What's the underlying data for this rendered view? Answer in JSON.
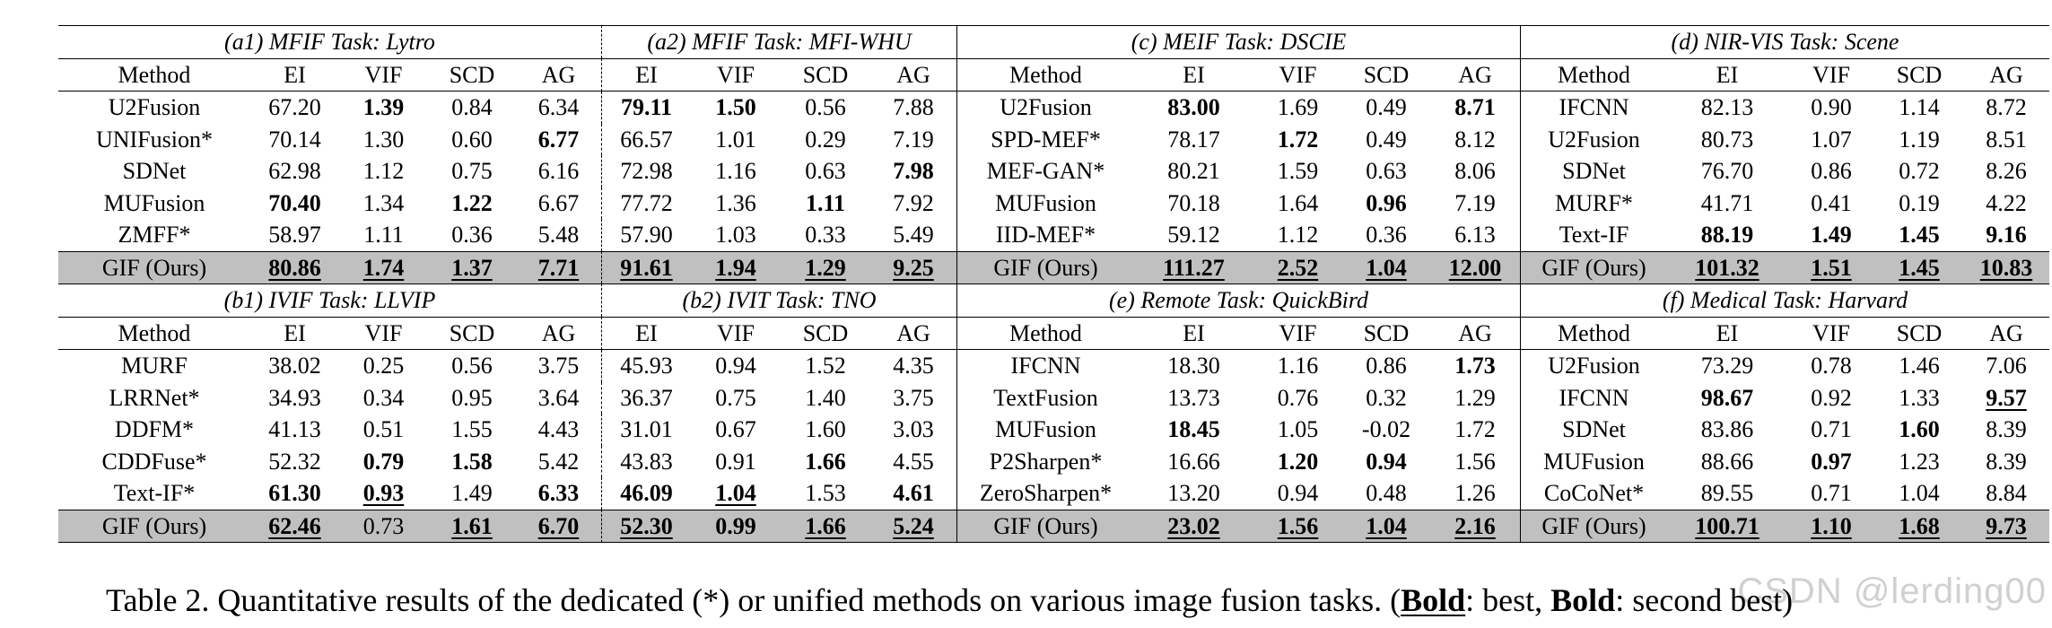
{
  "blocks": [
    {
      "titles": [
        "(a1) MFIF Task: Lytro",
        "(a2) MFIF Task: MFI-WHU",
        "(c) MEIF Task: DSCIE",
        "(d) NIR-VIS Task: Scene"
      ],
      "rows": [
        [
          "Method",
          "EI",
          "VIF",
          "SCD",
          "AG",
          "EI",
          "VIF",
          "SCD",
          "AG",
          "Method",
          "EI",
          "VIF",
          "SCD",
          "AG",
          "Method",
          "EI",
          "VIF",
          "SCD",
          "AG"
        ],
        [
          "U2Fusion",
          "67.20",
          "1.39",
          "0.84",
          "6.34",
          "79.11",
          "1.50",
          "0.56",
          "7.88",
          "U2Fusion",
          "83.00",
          "1.69",
          "0.49",
          "8.71",
          "IFCNN",
          "82.13",
          "0.90",
          "1.14",
          "8.72"
        ],
        [
          "UNIFusion*",
          "70.14",
          "1.30",
          "0.60",
          "6.77",
          "66.57",
          "1.01",
          "0.29",
          "7.19",
          "SPD-MEF*",
          "78.17",
          "1.72",
          "0.49",
          "8.12",
          "U2Fusion",
          "80.73",
          "1.07",
          "1.19",
          "8.51"
        ],
        [
          "SDNet",
          "62.98",
          "1.12",
          "0.75",
          "6.16",
          "72.98",
          "1.16",
          "0.63",
          "7.98",
          "MEF-GAN*",
          "80.21",
          "1.59",
          "0.63",
          "8.06",
          "SDNet",
          "76.70",
          "0.86",
          "0.72",
          "8.26"
        ],
        [
          "MUFusion",
          "70.40",
          "1.34",
          "1.22",
          "6.67",
          "77.72",
          "1.36",
          "1.11",
          "7.92",
          "MUFusion",
          "70.18",
          "1.64",
          "0.96",
          "7.19",
          "MURF*",
          "41.71",
          "0.41",
          "0.19",
          "4.22"
        ],
        [
          "ZMFF*",
          "58.97",
          "1.11",
          "0.36",
          "5.48",
          "57.90",
          "1.03",
          "0.33",
          "5.49",
          "IID-MEF*",
          "59.12",
          "1.12",
          "0.36",
          "6.13",
          "Text-IF",
          "88.19",
          "1.49",
          "1.45",
          "9.16"
        ],
        [
          "GIF (Ours)",
          "80.86",
          "1.74",
          "1.37",
          "7.71",
          "91.61",
          "1.94",
          "1.29",
          "9.25",
          "GIF (Ours)",
          "111.27",
          "2.52",
          "1.04",
          "12.00",
          "GIF (Ours)",
          "101.32",
          "1.51",
          "1.45",
          "10.83"
        ]
      ],
      "bold": [
        [
          1,
          2
        ],
        [
          1,
          5
        ],
        [
          1,
          6
        ],
        [
          1,
          10
        ],
        [
          1,
          13
        ],
        [
          2,
          4
        ],
        [
          2,
          11
        ],
        [
          3,
          8
        ],
        [
          4,
          1
        ],
        [
          4,
          3
        ],
        [
          4,
          7
        ],
        [
          4,
          12
        ],
        [
          5,
          15
        ],
        [
          5,
          16
        ],
        [
          5,
          17
        ],
        [
          5,
          18
        ],
        [
          6,
          1
        ],
        [
          6,
          2
        ],
        [
          6,
          3
        ],
        [
          6,
          4
        ],
        [
          6,
          5
        ],
        [
          6,
          6
        ],
        [
          6,
          7
        ],
        [
          6,
          8
        ],
        [
          6,
          10
        ],
        [
          6,
          11
        ],
        [
          6,
          12
        ],
        [
          6,
          13
        ],
        [
          6,
          15
        ],
        [
          6,
          16
        ],
        [
          6,
          17
        ],
        [
          6,
          18
        ]
      ],
      "underline": [
        [
          6,
          1
        ],
        [
          6,
          2
        ],
        [
          6,
          3
        ],
        [
          6,
          4
        ],
        [
          6,
          5
        ],
        [
          6,
          6
        ],
        [
          6,
          7
        ],
        [
          6,
          8
        ],
        [
          6,
          10
        ],
        [
          6,
          11
        ],
        [
          6,
          12
        ],
        [
          6,
          13
        ],
        [
          6,
          15
        ],
        [
          6,
          16
        ],
        [
          6,
          17
        ],
        [
          6,
          18
        ]
      ]
    },
    {
      "titles": [
        "(b1) IVIF Task: LLVIP",
        "(b2) IVIT Task: TNO",
        "(e) Remote Task: QuickBird",
        "(f) Medical Task: Harvard"
      ],
      "rows": [
        [
          "Method",
          "EI",
          "VIF",
          "SCD",
          "AG",
          "EI",
          "VIF",
          "SCD",
          "AG",
          "Method",
          "EI",
          "VIF",
          "SCD",
          "AG",
          "Method",
          "EI",
          "VIF",
          "SCD",
          "AG"
        ],
        [
          "MURF",
          "38.02",
          "0.25",
          "0.56",
          "3.75",
          "45.93",
          "0.94",
          "1.52",
          "4.35",
          "IFCNN",
          "18.30",
          "1.16",
          "0.86",
          "1.73",
          "U2Fusion",
          "73.29",
          "0.78",
          "1.46",
          "7.06"
        ],
        [
          "LRRNet*",
          "34.93",
          "0.34",
          "0.95",
          "3.64",
          "36.37",
          "0.75",
          "1.40",
          "3.75",
          "TextFusion",
          "13.73",
          "0.76",
          "0.32",
          "1.29",
          "IFCNN",
          "98.67",
          "0.92",
          "1.33",
          "9.57"
        ],
        [
          "DDFM*",
          "41.13",
          "0.51",
          "1.55",
          "4.43",
          "31.01",
          "0.67",
          "1.60",
          "3.03",
          "MUFusion",
          "18.45",
          "1.05",
          "-0.02",
          "1.72",
          "SDNet",
          "83.86",
          "0.71",
          "1.60",
          "8.39"
        ],
        [
          "CDDFuse*",
          "52.32",
          "0.79",
          "1.58",
          "5.42",
          "43.83",
          "0.91",
          "1.66",
          "4.55",
          "P2Sharpen*",
          "16.66",
          "1.20",
          "0.94",
          "1.56",
          "MUFusion",
          "88.66",
          "0.97",
          "1.23",
          "8.39"
        ],
        [
          "Text-IF*",
          "61.30",
          "0.93",
          "1.49",
          "6.33",
          "46.09",
          "1.04",
          "1.53",
          "4.61",
          "ZeroSharpen*",
          "13.20",
          "0.94",
          "0.48",
          "1.26",
          "CoCoNet*",
          "89.55",
          "0.71",
          "1.04",
          "8.84"
        ],
        [
          "GIF (Ours)",
          "62.46",
          "0.73",
          "1.61",
          "6.70",
          "52.30",
          "0.99",
          "1.66",
          "5.24",
          "GIF (Ours)",
          "23.02",
          "1.56",
          "1.04",
          "2.16",
          "GIF (Ours)",
          "100.71",
          "1.10",
          "1.68",
          "9.73"
        ]
      ],
      "bold": [
        [
          1,
          13
        ],
        [
          2,
          15
        ],
        [
          2,
          18
        ],
        [
          3,
          10
        ],
        [
          3,
          17
        ],
        [
          4,
          2
        ],
        [
          4,
          3
        ],
        [
          4,
          7
        ],
        [
          4,
          11
        ],
        [
          4,
          12
        ],
        [
          4,
          16
        ],
        [
          5,
          1
        ],
        [
          5,
          2
        ],
        [
          5,
          4
        ],
        [
          5,
          5
        ],
        [
          5,
          6
        ],
        [
          5,
          8
        ],
        [
          6,
          1
        ],
        [
          6,
          3
        ],
        [
          6,
          4
        ],
        [
          6,
          5
        ],
        [
          6,
          6
        ],
        [
          6,
          7
        ],
        [
          6,
          8
        ],
        [
          6,
          10
        ],
        [
          6,
          11
        ],
        [
          6,
          12
        ],
        [
          6,
          13
        ],
        [
          6,
          15
        ],
        [
          6,
          16
        ],
        [
          6,
          17
        ],
        [
          6,
          18
        ]
      ],
      "underline": [
        [
          2,
          18
        ],
        [
          5,
          2
        ],
        [
          5,
          6
        ],
        [
          6,
          1
        ],
        [
          6,
          3
        ],
        [
          6,
          4
        ],
        [
          6,
          5
        ],
        [
          6,
          7
        ],
        [
          6,
          8
        ],
        [
          6,
          10
        ],
        [
          6,
          11
        ],
        [
          6,
          12
        ],
        [
          6,
          13
        ],
        [
          6,
          15
        ],
        [
          6,
          16
        ],
        [
          6,
          17
        ],
        [
          6,
          18
        ]
      ]
    }
  ],
  "caption": {
    "text": "Table 2. Quantitative results of the dedicated (*) or unified methods on various image fusion tasks. (",
    "best_word": "Bold",
    "best_suffix": ": best, ",
    "second_word": "Bold",
    "second_suffix": ": second best)"
  },
  "watermark": "CSDN @lerding00"
}
